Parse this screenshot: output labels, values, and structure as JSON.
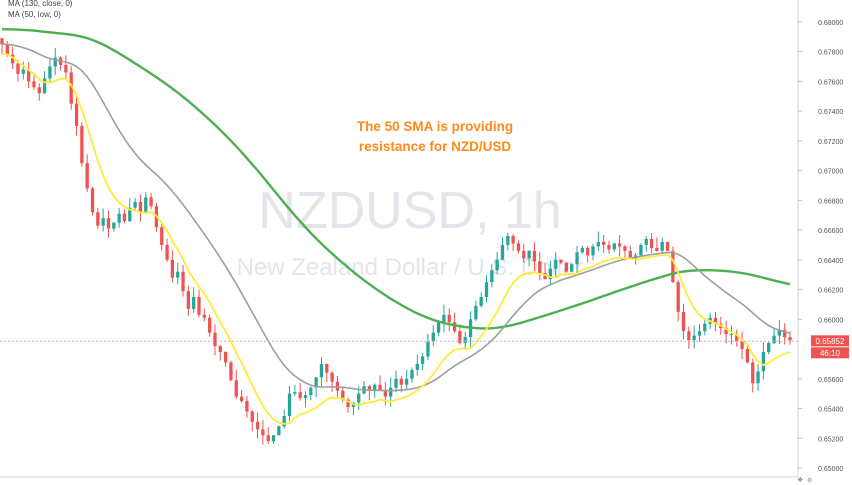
{
  "chart_data": {
    "type": "candlestick",
    "symbol": "NZDUSD, 1h",
    "description": "New Zealand Dollar / U.S. Dollar",
    "annotation": [
      "The 50 SMA is providing",
      "resistance for NZD/USD"
    ],
    "indicator_labels": [
      "MA (130, close, 0)",
      "MA (50, low, 0)"
    ],
    "ylim": [
      0.65,
      0.681
    ],
    "y_ticks": [
      "0.68000",
      "0.67800",
      "0.67600",
      "0.67400",
      "0.67200",
      "0.67000",
      "0.66800",
      "0.66600",
      "0.66400",
      "0.66200",
      "0.66000",
      "0.65600",
      "0.65400",
      "0.65200",
      "0.65000"
    ],
    "current_price": "0.65852",
    "countdown": "46:10",
    "close_series": [
      0.6785,
      0.6778,
      0.6772,
      0.6765,
      0.6768,
      0.676,
      0.6756,
      0.6752,
      0.6762,
      0.677,
      0.6776,
      0.6771,
      0.6766,
      0.6745,
      0.673,
      0.6705,
      0.6688,
      0.6672,
      0.6663,
      0.6668,
      0.6661,
      0.6665,
      0.6671,
      0.6666,
      0.6675,
      0.6679,
      0.6672,
      0.6682,
      0.6676,
      0.6662,
      0.665,
      0.664,
      0.6628,
      0.6632,
      0.6619,
      0.6607,
      0.6615,
      0.6603,
      0.6601,
      0.6591,
      0.6582,
      0.6578,
      0.6571,
      0.6559,
      0.6548,
      0.6545,
      0.6538,
      0.6531,
      0.6526,
      0.6522,
      0.6518,
      0.6522,
      0.6528,
      0.6535,
      0.655,
      0.6551,
      0.6547,
      0.6549,
      0.6554,
      0.6561,
      0.657,
      0.6564,
      0.6558,
      0.6552,
      0.6546,
      0.6541,
      0.6544,
      0.655,
      0.6555,
      0.6552,
      0.6556,
      0.6552,
      0.6548,
      0.6554,
      0.656,
      0.6556,
      0.656,
      0.6566,
      0.657,
      0.6575,
      0.6585,
      0.6591,
      0.6598,
      0.6603,
      0.6598,
      0.6592,
      0.6584,
      0.6588,
      0.66,
      0.6609,
      0.6615,
      0.6625,
      0.6633,
      0.664,
      0.665,
      0.6656,
      0.6651,
      0.6646,
      0.6641,
      0.6646,
      0.6639,
      0.6631,
      0.6627,
      0.6634,
      0.664,
      0.6638,
      0.6632,
      0.6637,
      0.6645,
      0.6648,
      0.6643,
      0.6649,
      0.6652,
      0.665,
      0.6647,
      0.6651,
      0.6649,
      0.6646,
      0.6641,
      0.6643,
      0.665,
      0.6654,
      0.6648,
      0.6646,
      0.6652,
      0.6646,
      0.6625,
      0.6605,
      0.6592,
      0.6586,
      0.6589,
      0.6592,
      0.6597,
      0.6601,
      0.6597,
      0.6594,
      0.659,
      0.659,
      0.6585,
      0.658,
      0.6571,
      0.6557,
      0.6565,
      0.6578,
      0.6584,
      0.6589,
      0.6593,
      0.6588,
      0.6586
    ]
  }
}
